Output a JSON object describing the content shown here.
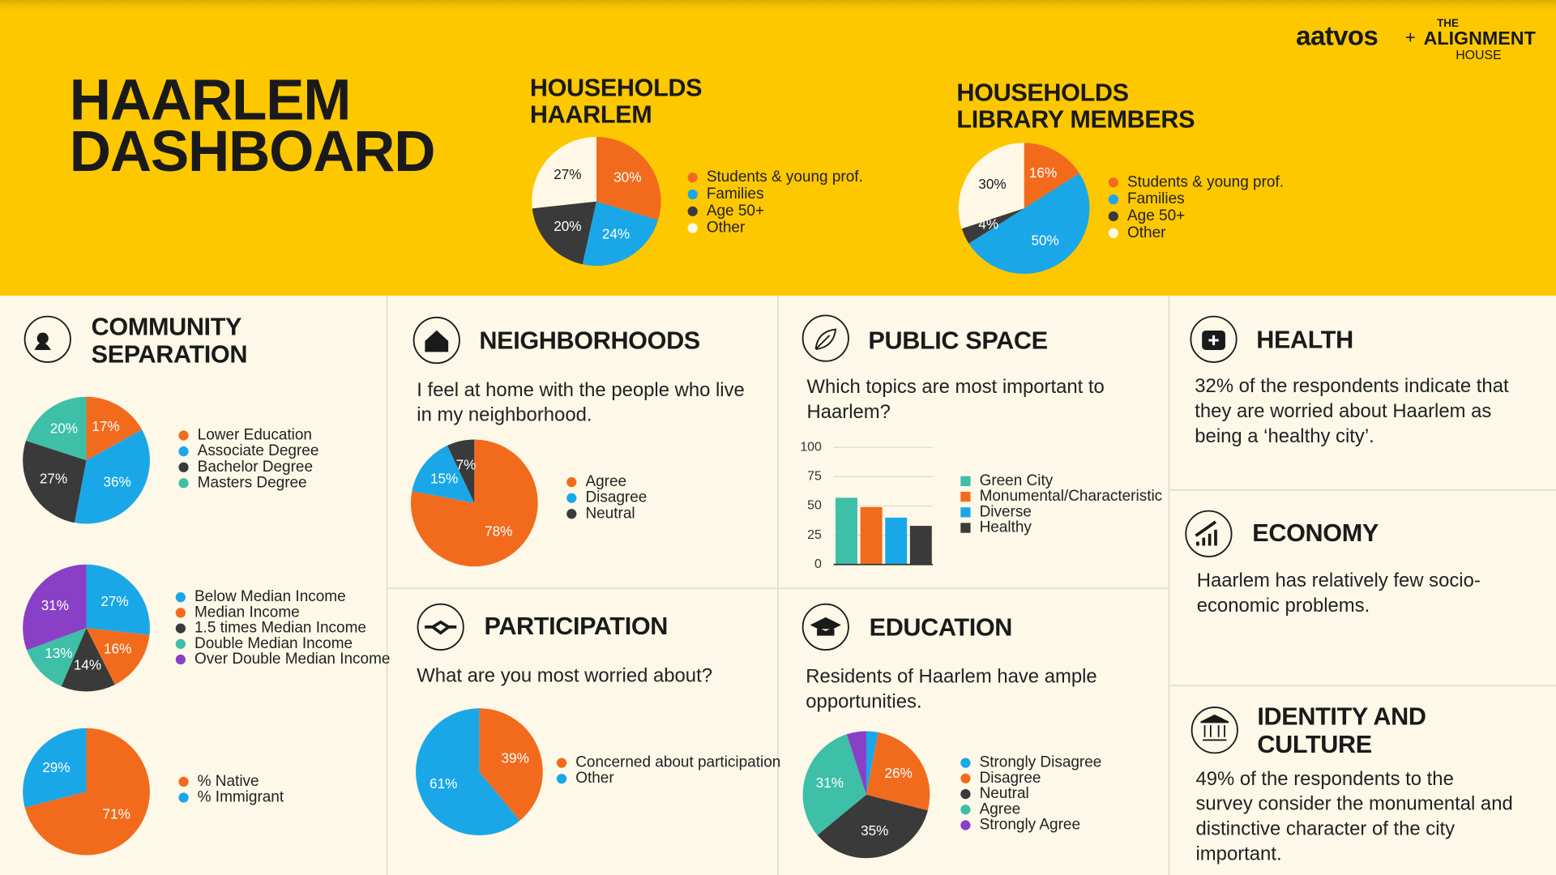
{
  "header": {
    "title": [
      "HAARLEM",
      "DASHBOARD"
    ],
    "logo_left": "aatvos",
    "logo_plus": "+",
    "logo_right": [
      "THE",
      "ALIGNMENT",
      "HOUSE"
    ]
  },
  "panels": [
    {
      "title": [
        "COMMUNITY",
        "SEPARATION"
      ]
    },
    {
      "title": [
        "NEIGHBORHOODS"
      ],
      "text": [
        "I feel at home with the people who live",
        "in my neighborhood."
      ]
    },
    {
      "title": [
        "PUBLIC SPACE"
      ],
      "text": [
        "Which topics are most important to",
        "Haarlem?"
      ]
    },
    {
      "title": [
        "HEALTH"
      ],
      "text": [
        "32% of the respondents indicate that",
        "they are worried about Haarlem as",
        "being a ‘healthy city’."
      ]
    },
    {
      "title": [
        "ECONOMY"
      ],
      "text": [
        "Haarlem has relatively few socio-",
        "economic problems."
      ]
    },
    {
      "title": [
        "PARTICIPATION"
      ],
      "text": [
        "What are you most worried about?"
      ]
    },
    {
      "title": [
        "EDUCATION"
      ],
      "text": [
        "Residents of Haarlem have ample",
        "opportunities."
      ]
    },
    {
      "title": [
        "IDENTITY AND",
        "CULTURE"
      ],
      "text": [
        "49% of the respondents to the",
        "survey consider the monumental and",
        "distinctive character of the city",
        "important."
      ]
    }
  ],
  "chart_data": [
    {
      "type": "pie",
      "title": [
        "HOUSEHOLDS",
        "HAARLEM"
      ],
      "categories": [
        "Students & young prof.",
        "Families",
        "Age 50+",
        "Other"
      ],
      "values": [
        30,
        24,
        20,
        27
      ],
      "value_labels": [
        "30%",
        "24%",
        "20%",
        "27%"
      ],
      "colors": [
        "#f26b1d",
        "#1aa7e8",
        "#3a3a3a",
        "#fff8e7"
      ]
    },
    {
      "type": "pie",
      "title": [
        "HOUSEHOLDS",
        "LIBRARY MEMBERS"
      ],
      "categories": [
        "Students & young prof.",
        "Families",
        "Age 50+",
        "Other"
      ],
      "values": [
        16,
        50,
        4,
        30
      ],
      "value_labels": [
        "16%",
        "50%",
        "4%",
        "30%"
      ],
      "colors": [
        "#f26b1d",
        "#1aa7e8",
        "#3a3a3a",
        "#fff8e7"
      ]
    },
    {
      "type": "pie",
      "categories": [
        "Lower Education",
        "Associate Degree",
        "Bachelor Degree",
        "Masters Degree"
      ],
      "values": [
        17,
        36,
        27,
        20
      ],
      "value_labels": [
        "17%",
        "36%",
        "27%",
        "20%"
      ],
      "colors": [
        "#f26b1d",
        "#1aa7e8",
        "#3a3a3a",
        "#3dbfa8"
      ]
    },
    {
      "type": "pie",
      "categories": [
        "Below Median Income",
        "Median Income",
        "1.5 times Median Income",
        "Double Median Income",
        "Over Double Median Income"
      ],
      "values": [
        27,
        16,
        14,
        13,
        31
      ],
      "value_labels": [
        "27%",
        "16%",
        "14%",
        "13%",
        "31%"
      ],
      "colors": [
        "#1aa7e8",
        "#f26b1d",
        "#3a3a3a",
        "#3dbfa8",
        "#8a3fc7"
      ]
    },
    {
      "type": "pie",
      "categories": [
        "% Native",
        "% Immigrant"
      ],
      "values": [
        71,
        29
      ],
      "value_labels": [
        "71%",
        "29%"
      ],
      "colors": [
        "#f26b1d",
        "#1aa7e8"
      ]
    },
    {
      "type": "pie",
      "categories": [
        "Agree",
        "Disagree",
        "Neutral"
      ],
      "values": [
        78,
        15,
        7
      ],
      "value_labels": [
        "78%",
        "15%",
        "7%"
      ],
      "colors": [
        "#f26b1d",
        "#1aa7e8",
        "#3a3a3a"
      ]
    },
    {
      "type": "bar",
      "categories": [
        "Green City",
        "Monumental/Characteristic",
        "Diverse",
        "Healthy"
      ],
      "values": [
        57,
        49,
        40,
        33
      ],
      "colors": [
        "#3dbfa8",
        "#f26b1d",
        "#1aa7e8",
        "#3a3a3a"
      ],
      "ylim": [
        0,
        100
      ],
      "yticks": [
        0,
        25,
        50,
        75,
        100
      ],
      "grid": true
    },
    {
      "type": "pie",
      "categories": [
        "Concerned about participation",
        "Other"
      ],
      "values": [
        39,
        61
      ],
      "value_labels": [
        "39%",
        "61%"
      ],
      "colors": [
        "#f26b1d",
        "#1aa7e8"
      ]
    },
    {
      "type": "pie",
      "categories": [
        "Strongly Disagree",
        "Disagree",
        "Neutral",
        "Agree",
        "Strongly Agree"
      ],
      "values": [
        3,
        26,
        35,
        31,
        5
      ],
      "value_labels": [
        null,
        "26%",
        "35%",
        "31%",
        null
      ],
      "colors": [
        "#1aa7e8",
        "#f26b1d",
        "#3a3a3a",
        "#3dbfa8",
        "#8a3fc7"
      ]
    }
  ]
}
